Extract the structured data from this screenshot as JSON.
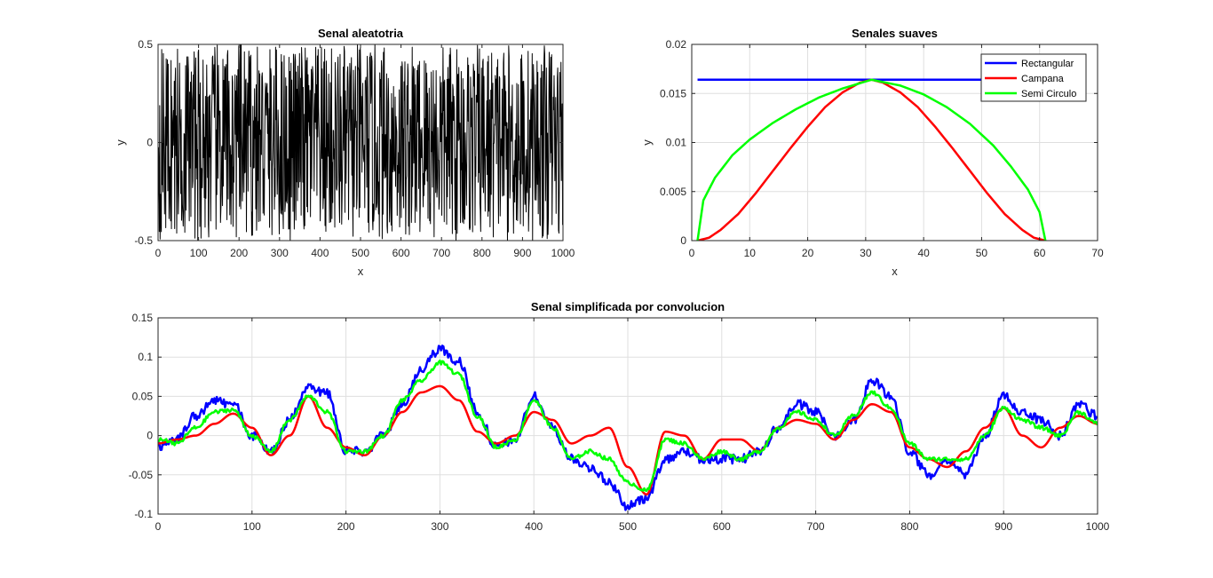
{
  "chart_data": [
    {
      "type": "line",
      "title": "Senal aleatotria",
      "xlabel": "x",
      "ylabel": "y",
      "xlim": [
        0,
        1000
      ],
      "ylim": [
        -0.5,
        0.5
      ],
      "xticks": [
        0,
        100,
        200,
        300,
        400,
        500,
        600,
        700,
        800,
        900,
        1000
      ],
      "yticks": [
        -0.5,
        0,
        0.5
      ],
      "xtick_labels": [
        "0",
        "100",
        "200",
        "300",
        "400",
        "500",
        "600",
        "700",
        "800",
        "900",
        "1000"
      ],
      "ytick_labels": [
        "-0.5",
        "0",
        "0.5"
      ],
      "grid": false,
      "series": [
        {
          "color": "#000000",
          "n_points": 1000,
          "value_range": [
            -0.5,
            0.5
          ],
          "description": "uniform random noise"
        }
      ]
    },
    {
      "type": "line",
      "title": "Senales suaves",
      "xlabel": "x",
      "ylabel": "y",
      "xlim": [
        0,
        70
      ],
      "ylim": [
        0,
        0.02
      ],
      "xticks": [
        0,
        10,
        20,
        30,
        40,
        50,
        60,
        70
      ],
      "yticks": [
        0,
        0.005,
        0.01,
        0.015,
        0.02
      ],
      "xtick_labels": [
        "0",
        "10",
        "20",
        "30",
        "40",
        "50",
        "60",
        "70"
      ],
      "ytick_labels": [
        "0",
        "0.005",
        "0.01",
        "0.015",
        "0.02"
      ],
      "grid": true,
      "legend": "top-right",
      "series": [
        {
          "name": "Rectangular",
          "color": "#0000ff",
          "x": [
            1,
            61
          ],
          "y": [
            0.0164,
            0.0164
          ]
        },
        {
          "name": "Campana",
          "color": "#ff0000",
          "x": [
            1,
            3,
            5,
            8,
            11,
            14,
            17,
            20,
            23,
            26,
            29,
            31,
            33,
            36,
            39,
            42,
            45,
            48,
            51,
            54,
            57,
            59,
            61
          ],
          "y": [
            0,
            0.0003,
            0.0011,
            0.0027,
            0.0048,
            0.0071,
            0.0094,
            0.0116,
            0.0136,
            0.0151,
            0.0161,
            0.0164,
            0.0161,
            0.0151,
            0.0136,
            0.0116,
            0.0094,
            0.0071,
            0.0048,
            0.0027,
            0.0011,
            0.0003,
            0
          ]
        },
        {
          "name": "Semi Circulo",
          "color": "#00ff00",
          "x": [
            1,
            2,
            4,
            7,
            10,
            14,
            18,
            22,
            26,
            31,
            36,
            40,
            44,
            48,
            52,
            55,
            58,
            60,
            61
          ],
          "y": [
            0,
            0.0041,
            0.0064,
            0.0087,
            0.0103,
            0.012,
            0.0134,
            0.0146,
            0.0155,
            0.0164,
            0.0158,
            0.0149,
            0.0136,
            0.0119,
            0.0097,
            0.0076,
            0.0052,
            0.0029,
            0
          ]
        }
      ]
    },
    {
      "type": "line",
      "title": "Senal simplificada por convolucion",
      "xlabel": "",
      "ylabel": "",
      "xlim": [
        0,
        1000
      ],
      "ylim": [
        -0.1,
        0.15
      ],
      "xticks": [
        0,
        100,
        200,
        300,
        400,
        500,
        600,
        700,
        800,
        900,
        1000
      ],
      "yticks": [
        -0.1,
        -0.05,
        0,
        0.05,
        0.1,
        0.15
      ],
      "xtick_labels": [
        "0",
        "100",
        "200",
        "300",
        "400",
        "500",
        "600",
        "700",
        "800",
        "900",
        "1000"
      ],
      "ytick_labels": [
        "-0.1",
        "-0.05",
        "0",
        "0.05",
        "0.1",
        "0.15"
      ],
      "grid": true,
      "x": [
        0,
        20,
        40,
        60,
        80,
        100,
        120,
        140,
        160,
        180,
        200,
        220,
        240,
        260,
        280,
        300,
        320,
        340,
        360,
        380,
        400,
        420,
        440,
        460,
        480,
        500,
        520,
        540,
        560,
        580,
        600,
        620,
        640,
        660,
        680,
        700,
        720,
        740,
        760,
        780,
        800,
        820,
        840,
        860,
        880,
        900,
        920,
        940,
        960,
        980,
        1000
      ],
      "series": [
        {
          "color": "#0000ff",
          "y": [
            -0.015,
            -0.005,
            0.025,
            0.045,
            0.04,
            0.0,
            -0.02,
            0.02,
            0.06,
            0.055,
            -0.02,
            -0.02,
            0.0,
            0.04,
            0.085,
            0.11,
            0.095,
            0.03,
            -0.015,
            -0.005,
            0.05,
            0.01,
            -0.03,
            -0.04,
            -0.06,
            -0.09,
            -0.08,
            -0.03,
            -0.02,
            -0.03,
            -0.03,
            -0.03,
            -0.02,
            0.01,
            0.04,
            0.03,
            0.0,
            0.02,
            0.07,
            0.05,
            -0.02,
            -0.05,
            -0.03,
            -0.05,
            0.0,
            0.05,
            0.03,
            0.02,
            0.0,
            0.04,
            0.025
          ]
        },
        {
          "color": "#ff0000",
          "y": [
            -0.01,
            -0.005,
            0.0,
            0.015,
            0.028,
            0.01,
            -0.025,
            0.0,
            0.05,
            0.01,
            -0.015,
            -0.025,
            0.0,
            0.03,
            0.055,
            0.063,
            0.045,
            0.005,
            -0.01,
            0.0,
            0.03,
            0.02,
            -0.01,
            0.0,
            0.01,
            -0.04,
            -0.075,
            0.005,
            0.0,
            -0.03,
            -0.005,
            -0.005,
            -0.02,
            0.01,
            0.02,
            0.015,
            -0.005,
            0.02,
            0.04,
            0.03,
            -0.015,
            -0.03,
            -0.04,
            -0.02,
            0.01,
            0.035,
            0.0,
            -0.015,
            0.01,
            0.025,
            0.015
          ]
        },
        {
          "color": "#00ff00",
          "y": [
            -0.005,
            -0.01,
            0.01,
            0.03,
            0.033,
            0.0,
            -0.02,
            0.02,
            0.05,
            0.03,
            -0.02,
            -0.02,
            0.0,
            0.045,
            0.07,
            0.093,
            0.078,
            0.025,
            -0.015,
            -0.005,
            0.045,
            0.01,
            -0.03,
            -0.02,
            -0.03,
            -0.06,
            -0.07,
            -0.005,
            -0.01,
            -0.03,
            -0.02,
            -0.03,
            -0.02,
            0.01,
            0.03,
            0.02,
            0.0,
            0.025,
            0.055,
            0.035,
            -0.01,
            -0.03,
            -0.03,
            -0.03,
            0.0,
            0.035,
            0.02,
            0.01,
            0.0,
            0.03,
            0.015
          ]
        }
      ]
    }
  ]
}
